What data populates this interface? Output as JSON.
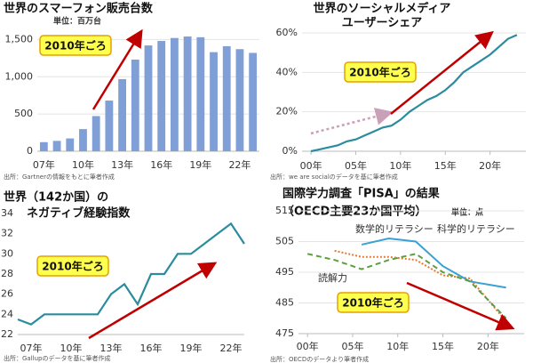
{
  "chart_data": [
    {
      "type": "bar",
      "title": "世界のスマーフォン販売台数",
      "subtitle": "単位：百万台",
      "categories": [
        "07年",
        null,
        null,
        "10年",
        null,
        null,
        "13年",
        null,
        null,
        "16年",
        null,
        null,
        "19年",
        null,
        null,
        "22年",
        null
      ],
      "values": [
        122,
        139,
        172,
        297,
        472,
        680,
        968,
        1230,
        1420,
        1480,
        1520,
        1540,
        1530,
        1330,
        1410,
        1370,
        1320
      ],
      "color": "#7f9fd6",
      "ylim": [
        0,
        1600
      ],
      "yticks": [
        0,
        500,
        {
          "value": 1000,
          "label": "1,000"
        },
        {
          "value": 1500,
          "label": "1,500"
        }
      ],
      "grid": true,
      "annotation": "2010年ごろ",
      "source": "出所：Gartnerの情報をもとに筆者作成"
    },
    {
      "type": "line",
      "title": [
        "世界のソーシャルメディア",
        "ユーザーシェア"
      ],
      "x": [
        2000,
        2001,
        2002,
        2003,
        2004,
        2005,
        2006,
        2007,
        2008,
        2009,
        2010,
        2011,
        2012,
        2013,
        2014,
        2015,
        2016,
        2017,
        2018,
        2019,
        2020,
        2021,
        2022,
        2023
      ],
      "values": [
        0,
        1,
        2,
        3,
        5,
        6,
        8,
        10,
        12,
        13,
        16,
        20,
        23,
        26,
        28,
        31,
        35,
        40,
        43,
        46,
        49,
        53,
        57,
        59
      ],
      "color": "#2a8c9e",
      "xlim": [
        1999,
        2024
      ],
      "xticks": [
        {
          "value": 2000,
          "label": "00年"
        },
        {
          "value": 2005,
          "label": "05年"
        },
        {
          "value": 2010,
          "label": "10年"
        },
        {
          "value": 2015,
          "label": "15年"
        },
        {
          "value": 2020,
          "label": "20年"
        }
      ],
      "ylim": [
        0,
        60
      ],
      "yticks": [
        {
          "value": 0,
          "label": "0%"
        },
        {
          "value": 20,
          "label": "20%"
        },
        {
          "value": 40,
          "label": "40%"
        },
        {
          "value": 60,
          "label": "60%"
        }
      ],
      "grid": true,
      "annotation": "2010年ごろ",
      "source": "出所：we are socialのデータを基に筆者作成"
    },
    {
      "type": "line",
      "title": [
        "世界（142か国）の",
        "ネガティブ経験指数"
      ],
      "categories": [
        null,
        "07年",
        null,
        null,
        "10年",
        null,
        null,
        "13年",
        null,
        null,
        "16年",
        null,
        null,
        "19年",
        null,
        null,
        "22年",
        null
      ],
      "values": [
        23.5,
        23,
        24,
        24,
        24,
        24,
        24,
        26,
        27,
        25,
        28,
        28,
        30,
        30,
        31,
        32,
        33,
        31
      ],
      "color": "#2a8c9e",
      "ylim": [
        22,
        34
      ],
      "yticks": [
        22,
        24,
        26,
        28,
        30,
        32,
        34
      ],
      "grid": false,
      "annotation": "2010年ごろ",
      "source": "出所：Gallupのデータを基に筆者作成"
    },
    {
      "type": "multiline",
      "title": "国際学力調査「PISA」の結果",
      "subtitle": "（OECD主要23か国平均）",
      "unit": "単位：点",
      "x": [
        2000,
        2003,
        2006,
        2009,
        2012,
        2015,
        2018,
        2022
      ],
      "series": [
        {
          "name": "数学的リテラシー",
          "color": "#e07b39",
          "style": "dotted",
          "values": [
            null,
            502,
            500,
            500,
            499,
            494,
            493,
            479
          ]
        },
        {
          "name": "科学的リテラシー",
          "color": "#3aa0d5",
          "style": "solid",
          "values": [
            null,
            null,
            504,
            506,
            505,
            497,
            492,
            490
          ]
        },
        {
          "name": "読解力",
          "color": "#5aa03c",
          "style": "dashed",
          "values": [
            501,
            499,
            496,
            499,
            501,
            495,
            492,
            480
          ]
        }
      ],
      "xlim": [
        1999,
        2024
      ],
      "xticks": [
        {
          "value": 2000,
          "label": "00年"
        },
        {
          "value": 2005,
          "label": "05年"
        },
        {
          "value": 2010,
          "label": "10年"
        },
        {
          "value": 2015,
          "label": "15年"
        },
        {
          "value": 2020,
          "label": "20年"
        }
      ],
      "ylim": [
        475,
        515
      ],
      "yticks": [
        475,
        485,
        495,
        505,
        515
      ],
      "grid": true,
      "annotation": "2010年ごろ",
      "source": "出所：OECDのデータより筆者作成"
    }
  ]
}
